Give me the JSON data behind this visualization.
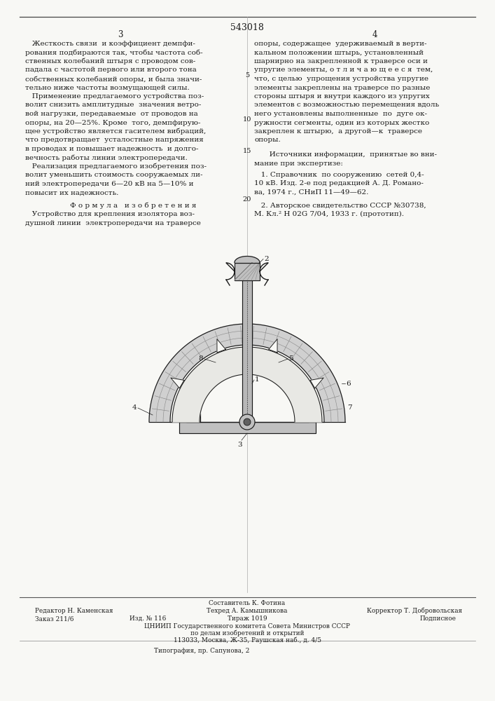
{
  "title": "543018",
  "page_left": "3",
  "page_right": "4",
  "bg_color": "#f8f8f5",
  "text_color": "#1a1a1a",
  "col1_lines": [
    "   Жесткость связи  и коэффициент демпфи-",
    "рования подбираются так, чтобы частота соб-",
    "ственных колебаний штыря с проводом сов-",
    "падала с частотой первого или второго тона",
    "собственных колебаний опоры, и была значи-",
    "тельно ниже частоты возмущающей силы.",
    "   Применение предлагаемого устройства поз-",
    "волит снизить амплитудные  значения ветро-",
    "вой нагрузки, передаваемые  от проводов на",
    "опоры, на 20—25%. Кроме  того, демпфирую-",
    "щее устройство является гасителем вибраций,",
    "что предотвращает  усталостные напряжения",
    "в проводах и повышает надежность  и долго-",
    "вечность работы линии электропередачи.",
    "   Реализация предлагаемого изобретения поз-",
    "волит уменьшить стоимость сооружаемых ли-",
    "ний электропередачи 6—20 кВ на 5—10% и",
    "повысит их надежность."
  ],
  "formula_title": "Ф о р м у л а   и з о б р е т е н и я",
  "formula_lines": [
    "   Устройство для крепления изолятора воз-",
    "душной линии  электропередачи на траверсе"
  ],
  "col2_lines": [
    "опоры, содержащее  удерживаемый в верти-",
    "кальном положении штырь, установленный",
    "шарнирно на закрепленной к траверсе оси и",
    "упругие элементы, о т л и ч а ю щ е е с я  тем,",
    "что, с целью  упрощения устройства упругие",
    "элементы закреплены на траверсе по разные",
    "стороны штыря и внутри каждого из упругих",
    "элементов с возможностью перемещения вдоль",
    "него установлены выполненные  по  дуге ок-",
    "ружности сегменты, один из которых жестко",
    "закреплен к штырю,  а другой—к  траверсе",
    "опоры."
  ],
  "sources_line1": "   Источники информации,  принятые во вни-",
  "sources_line2": "мание при экспертизе:",
  "src1_a": "   1. Справочник  по сооружению  сетей 0,4-",
  "src1_b": "10 кВ. Изд. 2-е под редакцией А. Д. Романо-",
  "src1_c": "ва, 1974 г., СНиП 11—49—62.",
  "src2_a": "   2. Авторское свидетельство СССР №30738,",
  "src2_b": "М. Кл.² Н 02G 7/04, 1933 г. (прототип).",
  "footer_sostavitel": "Составитель К. Фотина",
  "footer_redaktor": "Редактор Н. Каменская",
  "footer_tehred": "Техред А. Камышникова",
  "footer_korrektor": "Корректор Т. Добровольская",
  "footer_zakaz": "Заказ 211/6",
  "footer_izd": "Изд. № 116",
  "footer_tirazh": "Тираж 1019",
  "footer_podpisnoe": "Подписное",
  "footer_tsniip": "ЦНИИП Государственного комитета Совета Министров СССР",
  "footer_po_delam": "по делам изобретений и открытий",
  "footer_address": "113033, Москва, Ж-35, Раушская наб., д. 4/5",
  "footer_tipografiya": "Типография, пр. Сапунова, 2"
}
